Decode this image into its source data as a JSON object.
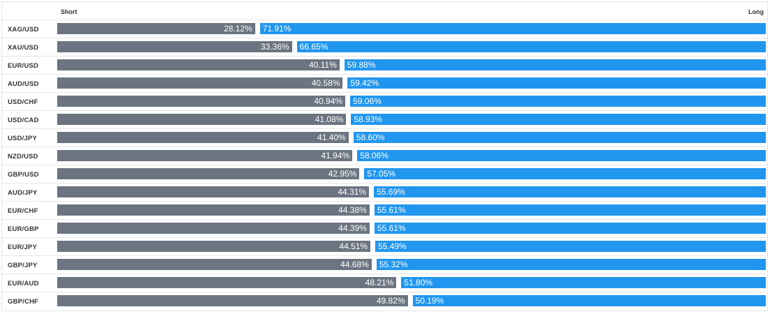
{
  "header": {
    "short_label": "Short",
    "long_label": "Long"
  },
  "colors": {
    "short": "#6b7480",
    "long": "#2196ee"
  },
  "chart_data": {
    "type": "bar",
    "orientation": "horizontal-stacked",
    "categories": [
      "XAG/USD",
      "XAU/USD",
      "EUR/USD",
      "AUD/USD",
      "USD/CHF",
      "USD/CAD",
      "USD/JPY",
      "NZD/USD",
      "GBP/USD",
      "AUD/JPY",
      "EUR/CHF",
      "EUR/GBP",
      "EUR/JPY",
      "GBP/JPY",
      "EUR/AUD",
      "GBP/CHF"
    ],
    "series": [
      {
        "name": "Short",
        "values": [
          28.12,
          33.36,
          40.11,
          40.58,
          40.94,
          41.08,
          41.4,
          41.94,
          42.95,
          44.31,
          44.38,
          44.39,
          44.51,
          44.68,
          48.21,
          49.82
        ]
      },
      {
        "name": "Long",
        "values": [
          71.91,
          66.65,
          59.88,
          59.42,
          59.06,
          58.93,
          58.6,
          58.06,
          57.05,
          55.69,
          55.61,
          55.61,
          55.49,
          55.32,
          51.8,
          50.19
        ]
      }
    ],
    "labels_short": [
      "28.12%",
      "33.36%",
      "40.11%",
      "40.58%",
      "40.94%",
      "41.08%",
      "41.40%",
      "41.94%",
      "42.95%",
      "44.31%",
      "44.38%",
      "44.39%",
      "44.51%",
      "44.68%",
      "48.21%",
      "49.82%"
    ],
    "labels_long": [
      "71.91%",
      "66.65%",
      "59.88%",
      "59.42%",
      "59.06%",
      "58.93%",
      "58.60%",
      "58.06%",
      "57.05%",
      "55.69%",
      "55.61%",
      "55.61%",
      "55.49%",
      "55.32%",
      "51.80%",
      "50.19%"
    ]
  }
}
